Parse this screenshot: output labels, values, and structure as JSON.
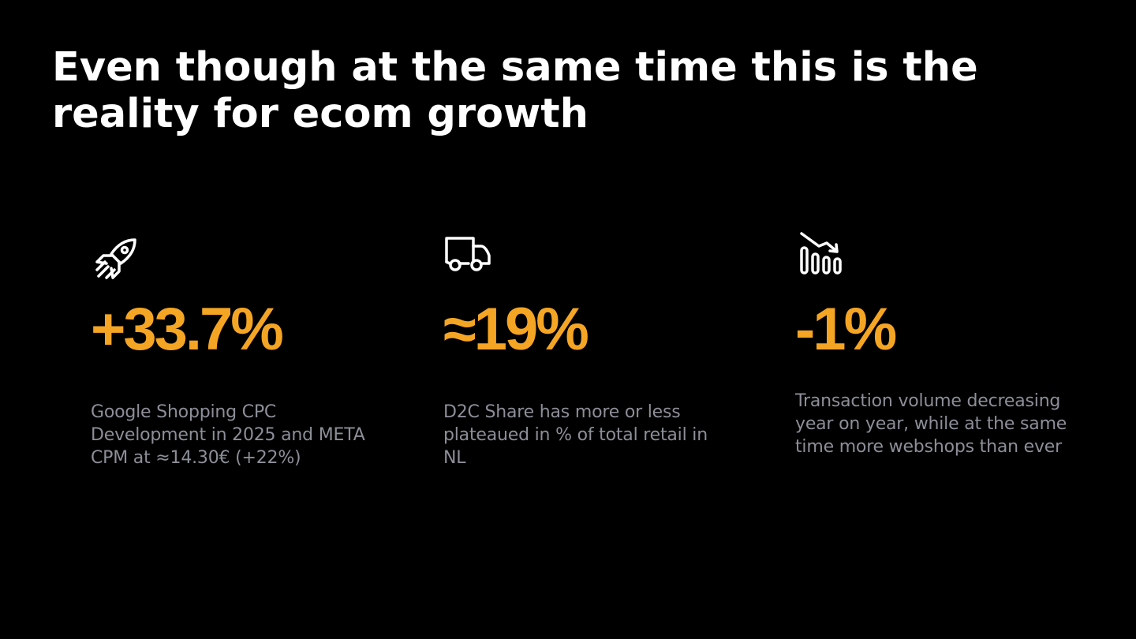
{
  "slide": {
    "title": "Even though at the same time this is the reality for ecom growth",
    "accent_color": "#f5a524",
    "stats": [
      {
        "icon": "rocket-icon",
        "value": "+33.7%",
        "description": "Google Shopping CPC Development in 2025 and META CPM at ≈14.30€ (+22%)"
      },
      {
        "icon": "delivery-truck-icon",
        "value": "≈19%",
        "description": "D2C Share has more or less plateaued in % of total retail in NL"
      },
      {
        "icon": "declining-chart-icon",
        "value": "-1%",
        "description": "Transaction volume decreasing year on year, while at the same time more webshops than ever"
      }
    ]
  }
}
